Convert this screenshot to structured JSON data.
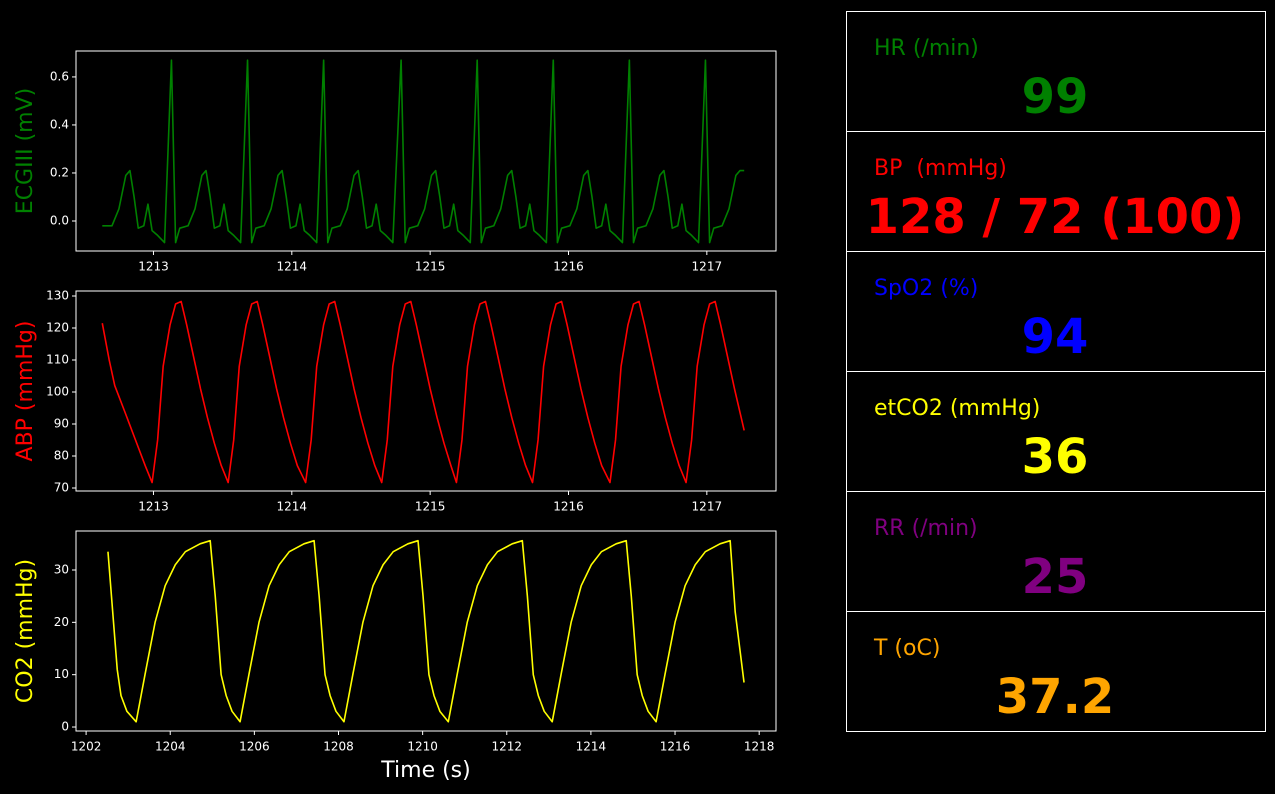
{
  "chart_data": [
    {
      "type": "line",
      "ylabel": "ECGIII (mV)",
      "color": "#008000",
      "xlim": [
        1212.44,
        1217.5
      ],
      "ylim": [
        -0.125,
        0.708
      ],
      "xticks": [
        1213,
        1214,
        1215,
        1216,
        1217
      ],
      "yticks": [
        {
          "value": 0,
          "label": "0.0"
        },
        0.2,
        0.4,
        0.6
      ],
      "x": [
        1212.63,
        1212.7,
        1212.75,
        1212.8,
        1212.83,
        1212.86,
        1212.89,
        1212.93,
        1212.96,
        1212.99,
        1213.03,
        1213.08,
        1213.13,
        1213.16,
        1213.19,
        1213.25,
        1213.3,
        1213.35,
        1213.38,
        1213.41,
        1213.44,
        1213.48,
        1213.51,
        1213.54,
        1213.58,
        1213.63,
        1213.68,
        1213.71,
        1213.74,
        1213.8,
        1213.85,
        1213.9,
        1213.93,
        1213.96,
        1213.99,
        1214.03,
        1214.06,
        1214.09,
        1214.13,
        1214.18,
        1214.23,
        1214.26,
        1214.29,
        1214.35,
        1214.4,
        1214.45,
        1214.48,
        1214.51,
        1214.54,
        1214.58,
        1214.61,
        1214.64,
        1214.68,
        1214.73,
        1214.79,
        1214.82,
        1214.85,
        1214.91,
        1214.96,
        1215.01,
        1215.04,
        1215.07,
        1215.1,
        1215.14,
        1215.17,
        1215.2,
        1215.24,
        1215.29,
        1215.34,
        1215.37,
        1215.4,
        1215.46,
        1215.51,
        1215.56,
        1215.59,
        1215.62,
        1215.65,
        1215.69,
        1215.72,
        1215.75,
        1215.79,
        1215.84,
        1215.89,
        1215.92,
        1215.95,
        1216.01,
        1216.06,
        1216.11,
        1216.14,
        1216.17,
        1216.2,
        1216.24,
        1216.27,
        1216.3,
        1216.34,
        1216.39,
        1216.44,
        1216.47,
        1216.5,
        1216.56,
        1216.61,
        1216.66,
        1216.69,
        1216.72,
        1216.75,
        1216.79,
        1216.82,
        1216.85,
        1216.89,
        1216.94,
        1216.99,
        1217.02,
        1217.05,
        1217.11,
        1217.16,
        1217.21,
        1217.24,
        1217.27
      ],
      "values": [
        -0.02,
        -0.02,
        0.05,
        0.19,
        0.21,
        0.1,
        -0.03,
        -0.02,
        0.07,
        -0.04,
        -0.06,
        -0.09,
        0.67,
        -0.09,
        -0.03,
        -0.02,
        0.05,
        0.19,
        0.21,
        0.1,
        -0.03,
        -0.02,
        0.07,
        -0.04,
        -0.06,
        -0.09,
        0.67,
        -0.09,
        -0.03,
        -0.02,
        0.05,
        0.19,
        0.21,
        0.1,
        -0.03,
        -0.02,
        0.07,
        -0.04,
        -0.06,
        -0.09,
        0.67,
        -0.09,
        -0.03,
        -0.02,
        0.05,
        0.19,
        0.21,
        0.1,
        -0.03,
        -0.02,
        0.07,
        -0.04,
        -0.06,
        -0.09,
        0.67,
        -0.09,
        -0.03,
        -0.02,
        0.05,
        0.19,
        0.21,
        0.1,
        -0.03,
        -0.02,
        0.07,
        -0.04,
        -0.06,
        -0.09,
        0.67,
        -0.09,
        -0.03,
        -0.02,
        0.05,
        0.19,
        0.21,
        0.1,
        -0.03,
        -0.02,
        0.07,
        -0.04,
        -0.06,
        -0.09,
        0.67,
        -0.09,
        -0.03,
        -0.02,
        0.05,
        0.19,
        0.21,
        0.1,
        -0.03,
        -0.02,
        0.07,
        -0.04,
        -0.06,
        -0.09,
        0.67,
        -0.09,
        -0.03,
        -0.02,
        0.05,
        0.19,
        0.21,
        0.1,
        -0.03,
        -0.02,
        0.07,
        -0.04,
        -0.06,
        -0.09,
        0.67,
        -0.09,
        -0.03,
        -0.02,
        0.05,
        0.19,
        0.21,
        0.21
      ]
    },
    {
      "type": "line",
      "ylabel": "ABP (mmHg)",
      "color": "#ff0000",
      "xlim": [
        1212.44,
        1217.5
      ],
      "ylim": [
        69.06,
        131.56
      ],
      "xticks": [
        1213,
        1214,
        1215,
        1216,
        1217
      ],
      "yticks": [
        70,
        80,
        90,
        100,
        110,
        120,
        130
      ],
      "x": [
        1212.63,
        1212.68,
        1212.72,
        1212.8,
        1212.87,
        1212.94,
        1212.99,
        1213.03,
        1213.07,
        1213.12,
        1213.16,
        1213.2,
        1213.24,
        1213.29,
        1213.34,
        1213.39,
        1213.44,
        1213.49,
        1213.54,
        1213.58,
        1213.62,
        1213.67,
        1213.71,
        1213.75,
        1213.79,
        1213.84,
        1213.89,
        1213.94,
        1213.99,
        1214.04,
        1214.1,
        1214.14,
        1214.18,
        1214.23,
        1214.27,
        1214.31,
        1214.35,
        1214.4,
        1214.45,
        1214.5,
        1214.55,
        1214.6,
        1214.65,
        1214.69,
        1214.73,
        1214.78,
        1214.82,
        1214.86,
        1214.9,
        1214.95,
        1215.0,
        1215.05,
        1215.1,
        1215.15,
        1215.19,
        1215.23,
        1215.27,
        1215.32,
        1215.36,
        1215.4,
        1215.44,
        1215.49,
        1215.54,
        1215.59,
        1215.64,
        1215.69,
        1215.74,
        1215.78,
        1215.82,
        1215.87,
        1215.91,
        1215.95,
        1215.99,
        1216.04,
        1216.09,
        1216.14,
        1216.19,
        1216.24,
        1216.3,
        1216.34,
        1216.38,
        1216.43,
        1216.47,
        1216.51,
        1216.55,
        1216.6,
        1216.65,
        1216.7,
        1216.75,
        1216.8,
        1216.85,
        1216.89,
        1216.93,
        1216.98,
        1217.02,
        1217.06,
        1217.1,
        1217.15,
        1217.2,
        1217.27
      ],
      "values": [
        121.5,
        110,
        102,
        93,
        85,
        77,
        71.7,
        85,
        108,
        121,
        127.5,
        128.3,
        121,
        111,
        101,
        92,
        84,
        77,
        71.7,
        85,
        108,
        121,
        127.5,
        128.3,
        121,
        111,
        101,
        92,
        84,
        77,
        71.7,
        85,
        108,
        121,
        127.5,
        128.3,
        121,
        111,
        101,
        92,
        84,
        77,
        71.7,
        85,
        108,
        121,
        127.5,
        128.3,
        121,
        111,
        101,
        92,
        84,
        77,
        71.7,
        85,
        108,
        121,
        127.5,
        128.3,
        121,
        111,
        101,
        92,
        84,
        77,
        71.7,
        85,
        108,
        121,
        127.5,
        128.3,
        121,
        111,
        101,
        92,
        84,
        77,
        71.7,
        85,
        108,
        121,
        127.5,
        128.3,
        121,
        111,
        101,
        92,
        84,
        77,
        71.7,
        85,
        108,
        121,
        127.5,
        128.3,
        121,
        111,
        101,
        88
      ]
    },
    {
      "type": "line",
      "ylabel": "CO2 (mmHg)",
      "xlabel": "Time (s)",
      "color": "#ffff00",
      "xlim": [
        1201.76,
        1218.4
      ],
      "ylim": [
        -0.76,
        37.45
      ],
      "xticks": [
        1202,
        1204,
        1206,
        1208,
        1210,
        1212,
        1214,
        1216,
        1218
      ],
      "yticks": [
        0,
        10,
        20,
        30
      ],
      "x": [
        1202.52,
        1202.74,
        1202.83,
        1202.97,
        1203.19,
        1203.4,
        1203.64,
        1203.88,
        1204.12,
        1204.36,
        1204.71,
        1204.95,
        1205.07,
        1205.21,
        1205.33,
        1205.47,
        1205.66,
        1205.87,
        1206.11,
        1206.35,
        1206.59,
        1206.83,
        1207.18,
        1207.42,
        1207.54,
        1207.68,
        1207.8,
        1207.94,
        1208.13,
        1208.34,
        1208.58,
        1208.82,
        1209.06,
        1209.3,
        1209.65,
        1209.89,
        1210.01,
        1210.15,
        1210.27,
        1210.41,
        1210.61,
        1210.82,
        1211.06,
        1211.3,
        1211.54,
        1211.78,
        1212.13,
        1212.37,
        1212.49,
        1212.63,
        1212.75,
        1212.89,
        1213.08,
        1213.29,
        1213.53,
        1213.77,
        1214.01,
        1214.25,
        1214.6,
        1214.84,
        1214.96,
        1215.1,
        1215.22,
        1215.36,
        1215.55,
        1215.76,
        1216.0,
        1216.24,
        1216.48,
        1216.72,
        1217.07,
        1217.31,
        1217.43,
        1217.64
      ],
      "values": [
        33.5,
        11,
        6,
        3,
        1,
        10,
        20,
        27,
        31,
        33.5,
        35,
        35.6,
        25,
        10,
        6,
        3,
        1,
        10,
        20,
        27,
        31,
        33.5,
        35,
        35.6,
        25,
        10,
        6,
        3,
        1,
        10,
        20,
        27,
        31,
        33.5,
        35,
        35.6,
        25,
        10,
        6,
        3,
        1,
        10,
        20,
        27,
        31,
        33.5,
        35,
        35.6,
        25,
        10,
        6,
        3,
        1,
        10,
        20,
        27,
        31,
        33.5,
        35,
        35.6,
        25,
        10,
        6,
        3,
        1,
        10,
        20,
        27,
        31,
        33.5,
        35,
        35.6,
        22,
        8.5
      ]
    }
  ],
  "vitals": [
    {
      "label": "HR (/min)",
      "value": 99,
      "color": "#008000"
    },
    {
      "label": "BP  (mmHg)",
      "value": "128 / 72 (100)",
      "color": "#ff0000"
    },
    {
      "label": "SpO2 (%)",
      "value": 94,
      "color": "#0000ff"
    },
    {
      "label": "etCO2 (mmHg)",
      "value": 36,
      "color": "#ffff00"
    },
    {
      "label": "RR (/min)",
      "value": 25,
      "color": "#800080"
    },
    {
      "label": "T (oC)",
      "value": 37.2,
      "color": "#ffa500"
    }
  ]
}
